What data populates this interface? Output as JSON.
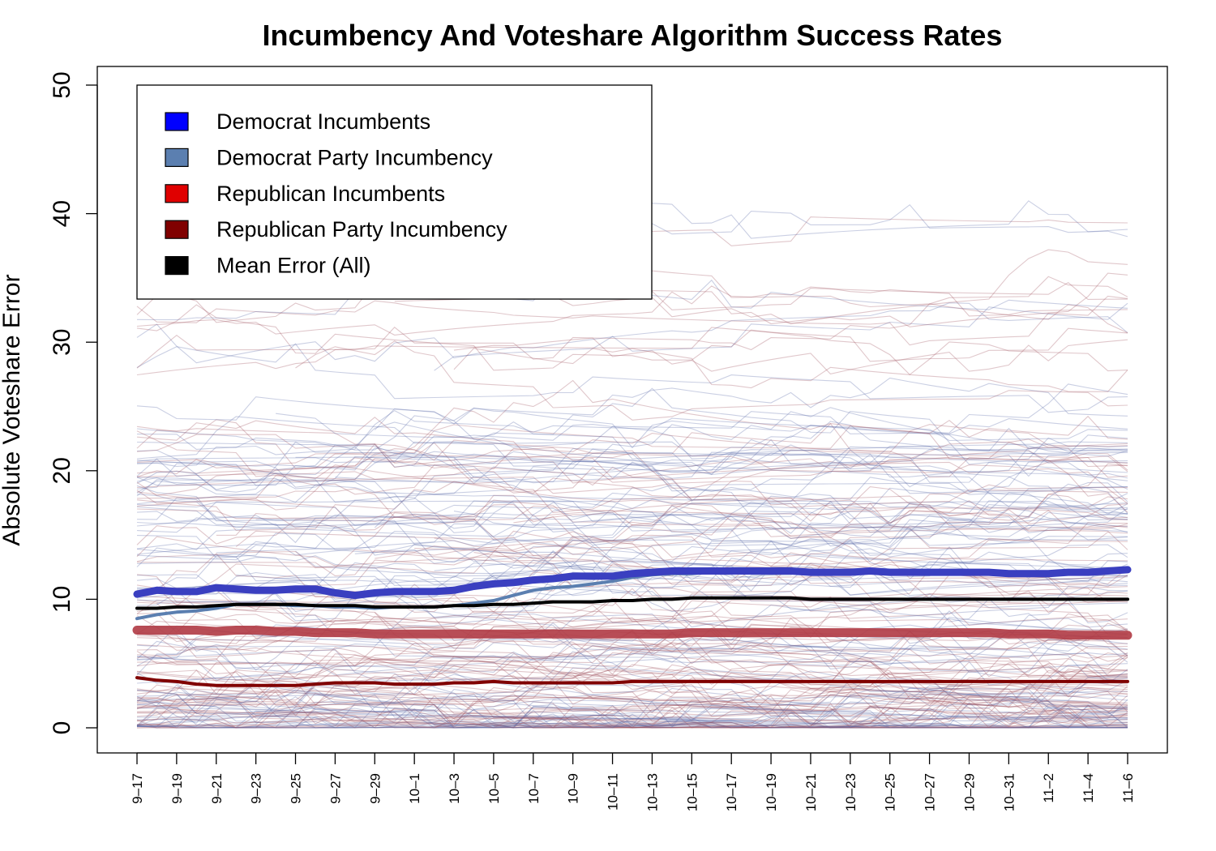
{
  "chart_data": {
    "type": "line",
    "title": "Incumbency And Voteshare Algorithm Success Rates",
    "xlabel": "",
    "ylabel": "Absolute Voteshare Error",
    "ylim": [
      0,
      50
    ],
    "y_ticks": [
      "0",
      "10",
      "20",
      "30",
      "40",
      "50"
    ],
    "x": [
      "9-17",
      "9-18",
      "9-19",
      "9-20",
      "9-21",
      "9-22",
      "9-23",
      "9-24",
      "9-25",
      "9-26",
      "9-27",
      "9-28",
      "9-29",
      "9-30",
      "10-1",
      "10-2",
      "10-3",
      "10-4",
      "10-5",
      "10-6",
      "10-7",
      "10-8",
      "10-9",
      "10-10",
      "10-11",
      "10-12",
      "10-13",
      "10-14",
      "10-15",
      "10-16",
      "10-17",
      "10-18",
      "10-19",
      "10-20",
      "10-21",
      "10-22",
      "10-23",
      "10-24",
      "10-25",
      "10-26",
      "10-27",
      "10-28",
      "10-29",
      "10-30",
      "10-31",
      "11-1",
      "11-2",
      "11-3",
      "11-4",
      "11-5",
      "11-6"
    ],
    "x_tick_labels": [
      "9–17",
      "9–19",
      "9–21",
      "9–23",
      "9–25",
      "9–27",
      "9–29",
      "10–1",
      "10–3",
      "10–5",
      "10–7",
      "10–9",
      "10–11",
      "10–13",
      "10–15",
      "10–17",
      "10–19",
      "10–21",
      "10–23",
      "10–25",
      "10–27",
      "10–29",
      "10–31",
      "11–2",
      "11–4",
      "11–6"
    ],
    "legend": {
      "position": "top-left",
      "entries": [
        {
          "label": "Democrat Incumbents",
          "color": "#0000ff"
        },
        {
          "label": "Democrat Party Incumbency",
          "color": "#5b7fb0"
        },
        {
          "label": "Republican Incumbents",
          "color": "#e00000"
        },
        {
          "label": "Republican Party Incumbency",
          "color": "#800000"
        },
        {
          "label": "Mean Error (All)",
          "color": "#000000"
        }
      ]
    },
    "series": [
      {
        "name": "Democrat Incumbents",
        "color": "#3a3fc0",
        "values": [
          10.4,
          10.7,
          10.6,
          10.6,
          10.9,
          10.8,
          10.7,
          10.7,
          10.8,
          10.8,
          10.5,
          10.3,
          10.5,
          10.6,
          10.6,
          10.6,
          10.7,
          11.0,
          11.2,
          11.3,
          11.5,
          11.6,
          11.8,
          11.8,
          11.8,
          12.0,
          12.1,
          12.2,
          12.2,
          12.2,
          12.2,
          12.2,
          12.2,
          12.2,
          12.1,
          12.1,
          12.1,
          12.2,
          12.1,
          12.1,
          12.1,
          12.1,
          12.1,
          12.1,
          12.0,
          12.0,
          12.0,
          12.1,
          12.1,
          12.2,
          12.3
        ]
      },
      {
        "name": "Democrat Party Incumbency",
        "color": "#5b7fb0",
        "values": [
          8.5,
          8.8,
          9.0,
          9.1,
          9.3,
          9.6,
          9.6,
          9.6,
          9.5,
          9.5,
          9.4,
          9.4,
          9.3,
          9.4,
          9.4,
          9.4,
          9.5,
          9.7,
          9.9,
          10.3,
          10.7,
          10.9,
          11.0,
          11.2,
          11.4,
          11.7,
          11.9,
          12.0,
          12.0,
          12.1,
          12.1,
          12.1,
          12.1,
          12.1,
          12.1,
          12.1,
          12.0,
          12.1,
          12.1,
          12.0,
          12.0,
          12.0,
          12.1,
          12.0,
          12.0,
          12.0,
          12.0,
          12.0,
          12.1,
          12.1,
          12.2
        ]
      },
      {
        "name": "Mean Error (All)",
        "color": "#000000",
        "values": [
          9.3,
          9.3,
          9.4,
          9.4,
          9.5,
          9.6,
          9.6,
          9.6,
          9.6,
          9.5,
          9.5,
          9.5,
          9.4,
          9.4,
          9.4,
          9.4,
          9.5,
          9.5,
          9.6,
          9.6,
          9.7,
          9.8,
          9.8,
          9.8,
          9.9,
          9.9,
          10.0,
          10.0,
          10.1,
          10.1,
          10.1,
          10.1,
          10.1,
          10.1,
          10.0,
          10.0,
          10.0,
          10.0,
          10.0,
          10.0,
          10.0,
          10.0,
          10.0,
          10.0,
          10.0,
          10.0,
          10.0,
          10.0,
          10.0,
          10.0,
          10.0
        ]
      },
      {
        "name": "Republican Incumbents",
        "color": "#b03a44",
        "values": [
          7.6,
          7.6,
          7.6,
          7.6,
          7.5,
          7.6,
          7.6,
          7.5,
          7.5,
          7.4,
          7.4,
          7.4,
          7.3,
          7.3,
          7.3,
          7.3,
          7.3,
          7.3,
          7.3,
          7.3,
          7.3,
          7.3,
          7.3,
          7.3,
          7.3,
          7.3,
          7.3,
          7.3,
          7.4,
          7.4,
          7.4,
          7.4,
          7.4,
          7.4,
          7.4,
          7.4,
          7.4,
          7.4,
          7.4,
          7.4,
          7.4,
          7.4,
          7.4,
          7.4,
          7.3,
          7.3,
          7.3,
          7.2,
          7.2,
          7.2,
          7.2
        ]
      },
      {
        "name": "Republican Party Incumbency",
        "color": "#800000",
        "values": [
          3.9,
          3.7,
          3.6,
          3.4,
          3.3,
          3.3,
          3.3,
          3.3,
          3.3,
          3.4,
          3.5,
          3.5,
          3.5,
          3.4,
          3.4,
          3.4,
          3.5,
          3.5,
          3.6,
          3.5,
          3.5,
          3.5,
          3.5,
          3.5,
          3.5,
          3.6,
          3.6,
          3.6,
          3.6,
          3.6,
          3.6,
          3.6,
          3.6,
          3.6,
          3.6,
          3.6,
          3.6,
          3.6,
          3.6,
          3.6,
          3.6,
          3.6,
          3.6,
          3.6,
          3.6,
          3.6,
          3.6,
          3.6,
          3.6,
          3.6,
          3.6
        ]
      }
    ],
    "background_lines": {
      "count": 220,
      "colors": [
        "#5a6aa8",
        "#a0525e"
      ],
      "opacity": 0.32,
      "note_values_range": [
        0,
        41
      ]
    }
  }
}
